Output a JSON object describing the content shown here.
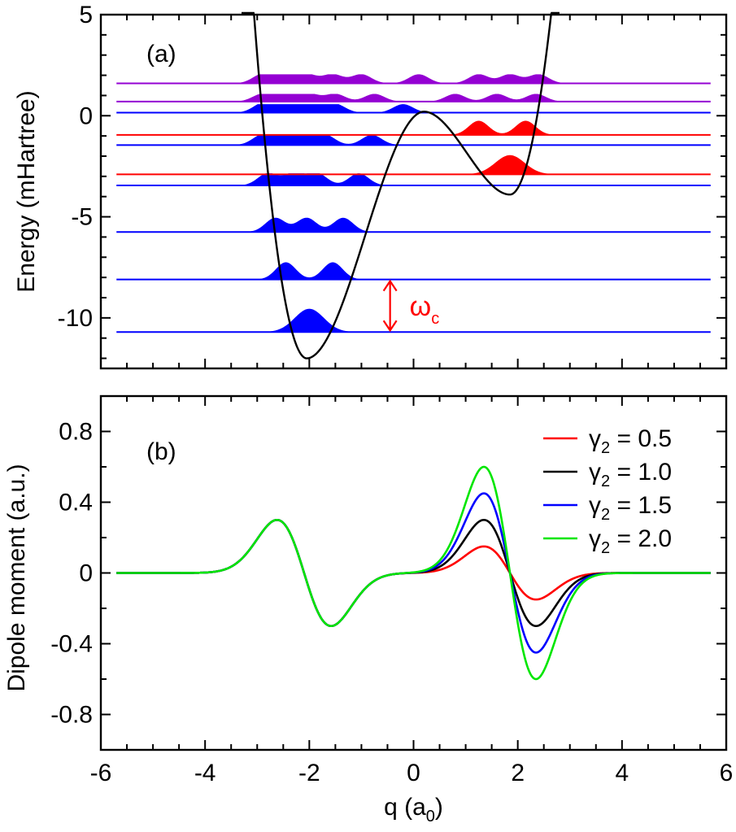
{
  "chart_data": [
    {
      "type": "line",
      "panel_label": "(a)",
      "xlabel": "",
      "ylabel": "Energy (mHartree)",
      "xlim": [
        -6,
        6
      ],
      "ylim": [
        -12.5,
        5
      ],
      "xticks": [
        -6,
        -4,
        -2,
        0,
        2,
        4,
        6
      ],
      "yticks": [
        5,
        0,
        -5,
        -10
      ],
      "ytick_labels": [
        "5",
        "0",
        "-5",
        "-10"
      ],
      "potential": {
        "color": "#000000",
        "description": "double-well potential",
        "points": [
          {
            "q": -3.3,
            "E": 14
          },
          {
            "q": -2.05,
            "E": -12.0
          },
          {
            "q": 0.2,
            "E": 0.2
          },
          {
            "q": 1.85,
            "E": -3.9
          },
          {
            "q": 2.8,
            "E": 9
          }
        ]
      },
      "levels": [
        {
          "energy": -10.7,
          "color": "#0000ff",
          "peaks": [
            -2.0
          ],
          "amp": 1.15
        },
        {
          "energy": -8.1,
          "color": "#0000ff",
          "peaks": [
            -2.45,
            -1.55
          ],
          "amp": 0.85
        },
        {
          "energy": -5.75,
          "color": "#0000ff",
          "peaks": [
            -2.65,
            -2.05,
            -1.35
          ],
          "amp": 0.7
        },
        {
          "energy": -3.45,
          "color": "#0000ff",
          "peaks": [
            -2.8,
            -2.3,
            -1.85,
            -1.05
          ],
          "amp": 0.6
        },
        {
          "energy": -2.9,
          "color": "#ff0000",
          "peaks": [
            1.85
          ],
          "amp": 0.95
        },
        {
          "energy": -1.45,
          "color": "#0000ff",
          "peaks": [
            -2.9,
            -2.5,
            -2.1,
            -1.7,
            -0.8
          ],
          "amp": 0.5
        },
        {
          "energy": -0.95,
          "color": "#ff0000",
          "peaks": [
            1.25,
            2.15
          ],
          "amp": 0.7
        },
        {
          "energy": 0.15,
          "color": "#0000ff",
          "peaks": [
            -2.9,
            -2.6,
            -2.25,
            -1.9,
            -1.5,
            -0.2
          ],
          "amp": 0.42
        },
        {
          "energy": 0.7,
          "color": "#9400d3",
          "peaks": [
            -2.9,
            -2.45,
            -2.0,
            -1.5,
            -0.75,
            0.8,
            1.6,
            2.35
          ],
          "amp": 0.38
        },
        {
          "energy": 1.6,
          "color": "#9400d3",
          "peaks": [
            -2.9,
            -2.5,
            -2.05,
            -1.55,
            -1.0,
            0.1,
            1.25,
            1.85,
            2.4
          ],
          "amp": 0.45
        }
      ],
      "annotation": {
        "label": "ω",
        "subscript": "c",
        "color": "#ff0000",
        "q": -0.45,
        "from": -10.7,
        "to": -8.1
      }
    },
    {
      "type": "line",
      "panel_label": "(b)",
      "xlabel": "q (a",
      "xlabel_sub": "0",
      "xlabel_end": ")",
      "ylabel": "Dipole moment (a.u.)",
      "xlim": [
        -6,
        6
      ],
      "ylim": [
        -1.0,
        1.0
      ],
      "xticks": [
        -6,
        -4,
        -2,
        0,
        2,
        4,
        6
      ],
      "xtick_labels": [
        "-6",
        "-4",
        "-2",
        "0",
        "2",
        "4",
        "6"
      ],
      "yticks": [
        0.8,
        0.4,
        0,
        -0.4,
        -0.8
      ],
      "ytick_labels": [
        "0.8",
        "0.4",
        "0",
        "-0.4",
        "-0.8"
      ],
      "x_range": [
        -5.7,
        5.7
      ],
      "common_component": {
        "q0": -2.1,
        "amplitude": 0.3,
        "peak_q": -2.62
      },
      "series": [
        {
          "name": "γ",
          "sub": "2",
          "value": " = 0.5",
          "color": "#ff0000",
          "peak": 0.15,
          "trough": -0.15
        },
        {
          "name": "γ",
          "sub": "2",
          "value": " = 1.0",
          "color": "#000000",
          "peak": 0.3,
          "trough": -0.3
        },
        {
          "name": "γ",
          "sub": "2",
          "value": " = 1.5",
          "color": "#0000ff",
          "peak": 0.45,
          "trough": -0.45
        },
        {
          "name": "γ",
          "sub": "2",
          "value": " = 2.0",
          "color": "#00e600",
          "peak": 0.6,
          "trough": -0.6
        }
      ],
      "component_center": 1.85,
      "legend_position": "top-right"
    }
  ]
}
